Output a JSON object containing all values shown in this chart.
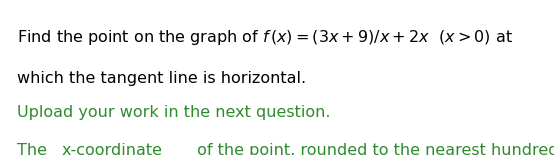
{
  "background_color": "#ffffff",
  "line1_text": "Find the point on the graph of $f\\,(x) = (3x + 9)/x + 2x\\ \\ (x > 0)$ at",
  "line1_color": "#000000",
  "line2": "which the tangent line is horizontal.",
  "line2_color": "#000000",
  "line3": "Upload your work in the next question.",
  "line3_color": "#2e8b2e",
  "line4_prefix": "The ",
  "line4_underline": "x-coordinate",
  "line4_suffix": " of the point, rounded to the nearest hundredth, is",
  "line4_color": "#2e8b2e",
  "font_size_main": 11.5,
  "fig_width": 5.54,
  "fig_height": 1.55,
  "dpi": 100
}
